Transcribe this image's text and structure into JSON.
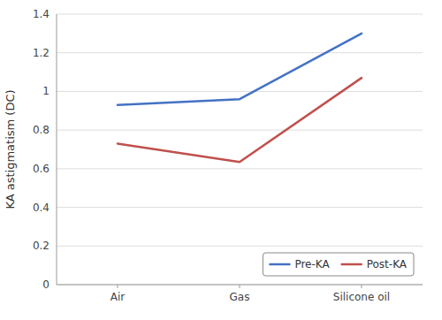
{
  "chart_data": {
    "type": "line",
    "y_label": "KA astigmatism (DC)",
    "categories": [
      "Air",
      "Gas",
      "Silicone oil"
    ],
    "series": [
      {
        "name": "Pre-KA",
        "color": "#4472C4",
        "values": [
          0.93,
          0.96,
          1.3
        ]
      },
      {
        "name": "Post-KA",
        "color": "#C0504D",
        "values": [
          0.73,
          0.635,
          1.07
        ]
      }
    ],
    "ylim": [
      0,
      1.4
    ],
    "yticks": [
      0,
      0.2,
      0.4,
      0.6,
      0.8,
      1,
      1.2,
      1.4
    ],
    "grid": true,
    "legend": "lower right"
  }
}
